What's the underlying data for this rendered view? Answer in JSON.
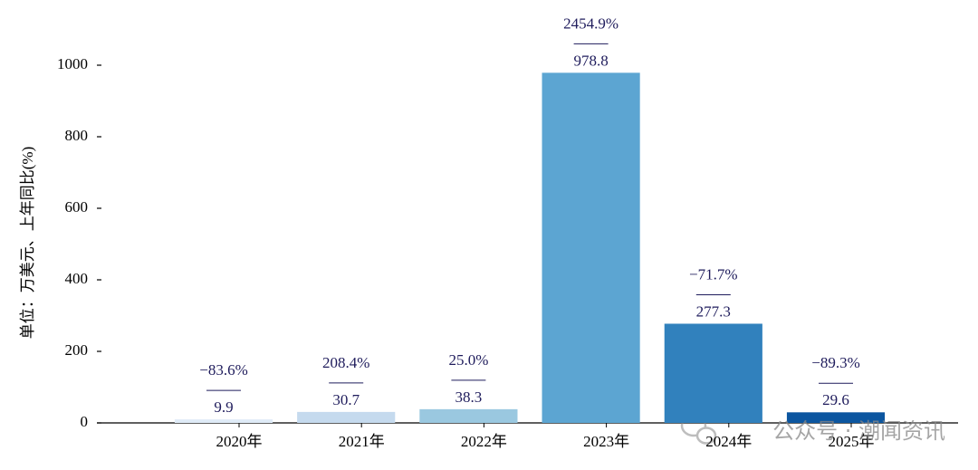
{
  "chart_data": {
    "type": "bar",
    "y_label": "单位：万美元、上年同比(%)",
    "categories": [
      "2020年",
      "2021年",
      "2022年",
      "2023年",
      "2024年",
      "2025年"
    ],
    "values": [
      9.9,
      30.7,
      38.3,
      978.8,
      277.3,
      29.6
    ],
    "colors": [
      "#dfebf7",
      "#c5daee",
      "#9ac8e0",
      "#5ca5d2",
      "#3181bd",
      "#0c56a0"
    ],
    "annotations": [
      "−83.6%",
      "208.4%",
      "25.0%",
      "2454.9%",
      "−71.7%",
      "−89.3%"
    ],
    "ylim": [
      0,
      1000
    ],
    "yticks": [
      0,
      200,
      400,
      600,
      800,
      1000
    ],
    "watermark": "公众号 · 潮闻资讯"
  }
}
